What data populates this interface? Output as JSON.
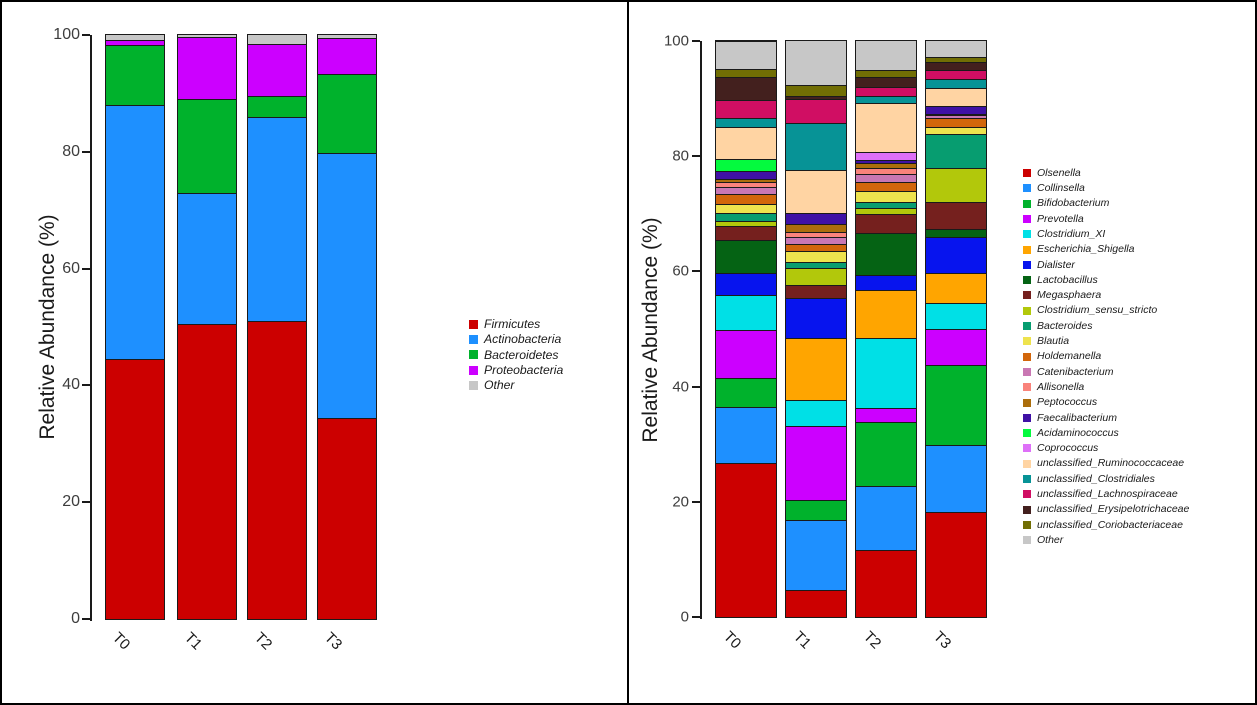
{
  "chart_data": [
    {
      "type": "bar",
      "stacked": true,
      "title": "",
      "ylabel": "Relative Abundance (%)",
      "xlabel": "",
      "ylim": [
        0,
        100
      ],
      "yticks": [
        0,
        20,
        40,
        60,
        80,
        100
      ],
      "grid": false,
      "legend_position": "right",
      "categories": [
        "T0",
        "T1",
        "T2",
        "T3"
      ],
      "series": [
        {
          "name": "Firmicutes",
          "color": "#CC0000",
          "values": [
            44.5,
            50.5,
            51.0,
            34.5
          ]
        },
        {
          "name": "Actinobacteria",
          "color": "#1E90FF",
          "values": [
            43.5,
            22.5,
            35.0,
            45.3
          ]
        },
        {
          "name": "Bacteroidetes",
          "color": "#00B22C",
          "values": [
            10.3,
            16.0,
            3.5,
            13.5
          ]
        },
        {
          "name": "Proteobacteria",
          "color": "#CC00FF",
          "values": [
            0.9,
            10.7,
            9.0,
            6.2
          ]
        },
        {
          "name": "Other",
          "color": "#C7C7C7",
          "values": [
            0.8,
            0.3,
            1.5,
            0.5
          ]
        }
      ]
    },
    {
      "type": "bar",
      "stacked": true,
      "title": "",
      "ylabel": "Relative Abundance (%)",
      "xlabel": "",
      "ylim": [
        0,
        100
      ],
      "yticks": [
        0,
        20,
        40,
        60,
        80,
        100
      ],
      "grid": false,
      "legend_position": "right",
      "categories": [
        "T0",
        "T1",
        "T2",
        "T3"
      ],
      "series": [
        {
          "name": "Olsenella",
          "color": "#CC0000",
          "values": [
            26.7,
            4.7,
            11.7,
            18.3
          ]
        },
        {
          "name": "Collinsella",
          "color": "#1E90FF",
          "values": [
            9.8,
            12.2,
            11.1,
            11.6
          ]
        },
        {
          "name": "Bifidobacterium",
          "color": "#00B22C",
          "values": [
            5.0,
            3.4,
            11.1,
            13.9
          ]
        },
        {
          "name": "Prevotella",
          "color": "#CC00FF",
          "values": [
            8.4,
            12.9,
            2.4,
            6.2
          ]
        },
        {
          "name": "Clostridium_XI",
          "color": "#00E0E6",
          "values": [
            6.0,
            4.5,
            12.1,
            4.6
          ]
        },
        {
          "name": "Escherichia_Shigella",
          "color": "#FFA500",
          "values": [
            0,
            10.7,
            8.4,
            5.2
          ]
        },
        {
          "name": "Dialister",
          "color": "#0714EE",
          "values": [
            3.8,
            6.9,
            2.6,
            6.1
          ]
        },
        {
          "name": "Lactobacillus",
          "color": "#056314",
          "values": [
            5.8,
            0,
            7.2,
            1.4
          ]
        },
        {
          "name": "Megasphaera",
          "color": "#75201E",
          "values": [
            2.3,
            2.3,
            3.3,
            4.7
          ]
        },
        {
          "name": "Clostridium_sensu_stricto",
          "color": "#B2C80B",
          "values": [
            1.0,
            3.0,
            1.1,
            6.0
          ]
        },
        {
          "name": "Bacteroides",
          "color": "#079D70",
          "values": [
            1.3,
            1.1,
            1.1,
            5.8
          ]
        },
        {
          "name": "Blautia",
          "color": "#EEE34E",
          "values": [
            1.6,
            1.8,
            1.8,
            1.2
          ]
        },
        {
          "name": "Holdemanella",
          "color": "#D2660B",
          "values": [
            1.8,
            1.2,
            1.7,
            1.6
          ]
        },
        {
          "name": "Catenibacterium",
          "color": "#C977B3",
          "values": [
            1.1,
            1.2,
            1.3,
            0.5
          ]
        },
        {
          "name": "Allisonella",
          "color": "#F9837B",
          "values": [
            1.0,
            1.0,
            1.0,
            0.3
          ]
        },
        {
          "name": "Peptococcus",
          "color": "#AB6D0B",
          "values": [
            0.5,
            1.4,
            0.9,
            0
          ]
        },
        {
          "name": "Faecalibacterium",
          "color": "#3F11A5",
          "values": [
            1.3,
            1.8,
            0.6,
            1.4
          ]
        },
        {
          "name": "Acidaminococcus",
          "color": "#04FA3E",
          "values": [
            2.1,
            0,
            0,
            0
          ]
        },
        {
          "name": "Coprococcus",
          "color": "#DE70F8",
          "values": [
            0,
            0,
            1.4,
            0
          ]
        },
        {
          "name": "unclassified_Ruminococcaceae",
          "color": "#FFD4A3",
          "values": [
            5.6,
            7.5,
            8.4,
            3.1
          ]
        },
        {
          "name": "unclassified_Clostridiales",
          "color": "#079396",
          "values": [
            1.6,
            8.1,
            1.2,
            1.5
          ]
        },
        {
          "name": "unclassified_Lachnospiraceae",
          "color": "#D00E63",
          "values": [
            3.1,
            4.3,
            1.7,
            1.5
          ]
        },
        {
          "name": "unclassified_Erysipelotrichaceae",
          "color": "#43201E",
          "values": [
            4.0,
            0.4,
            1.6,
            1.4
          ]
        },
        {
          "name": "unclassified_Coriobacteriaceae",
          "color": "#716E04",
          "values": [
            1.4,
            2.0,
            1.3,
            0.9
          ]
        },
        {
          "name": "Other",
          "color": "#C7C7C7",
          "values": [
            4.7,
            7.6,
            5.0,
            2.8
          ]
        }
      ]
    }
  ]
}
